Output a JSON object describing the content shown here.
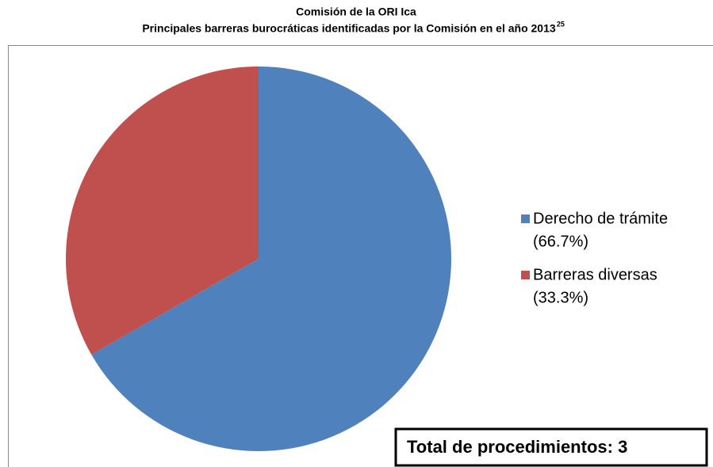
{
  "chart_data": {
    "type": "pie",
    "title": "Comisión de la ORI Ica",
    "subtitle": "Principales barreras burocráticas identificadas por la Comisión en el año 2013",
    "subtitle_superscript": "25",
    "categories": [
      "Derecho de trámite",
      "Barreras diversas"
    ],
    "values": [
      66.7,
      33.3
    ],
    "value_labels": [
      "(66.7%)",
      "(33.3%)"
    ],
    "colors": [
      "#4f81bd",
      "#c0504d"
    ],
    "legend": "right",
    "annotation": "Total de procedimientos: 3"
  }
}
